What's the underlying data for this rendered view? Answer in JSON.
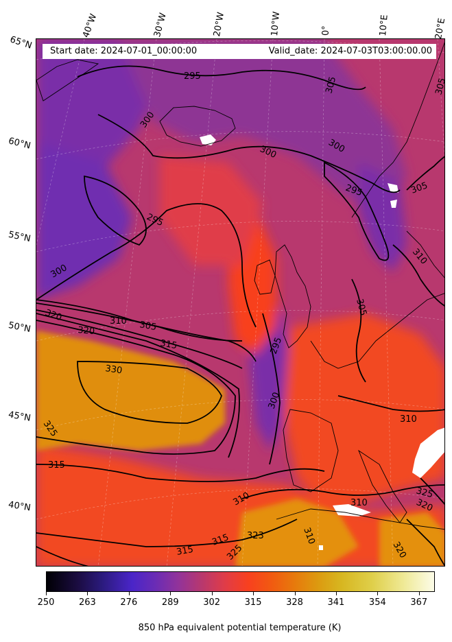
{
  "map": {
    "start_date": "Start date: 2024-07-01_00:00:00",
    "valid_date": "Valid_date: 2024-07-03T03:00:00.00",
    "longitude_labels": [
      "40°W",
      "30°W",
      "20°W",
      "10°W",
      "0°",
      "10°E",
      "20°E"
    ],
    "latitude_labels": [
      "65°N",
      "60°N",
      "55°N",
      "50°N",
      "45°N",
      "40°N"
    ],
    "contour_labels": [
      "295",
      "295",
      "295",
      "295",
      "300",
      "300",
      "300",
      "300",
      "300",
      "305",
      "305",
      "305",
      "305",
      "305",
      "310",
      "310",
      "310",
      "310",
      "310",
      "315",
      "315",
      "315",
      "315",
      "320",
      "320",
      "320",
      "320",
      "323",
      "325",
      "325",
      "325",
      "330",
      "310"
    ],
    "colors": {
      "cold": "#6a2cb5",
      "mid": "#b8386e",
      "warm": "#f8401f",
      "hot": "#e08e0c"
    }
  },
  "colorbar": {
    "title": "850 hPa equivalent potential temperature (K)",
    "ticks": [
      "250",
      "263",
      "276",
      "289",
      "302",
      "315",
      "328",
      "341",
      "354",
      "367"
    ],
    "range": [
      250,
      372
    ]
  }
}
